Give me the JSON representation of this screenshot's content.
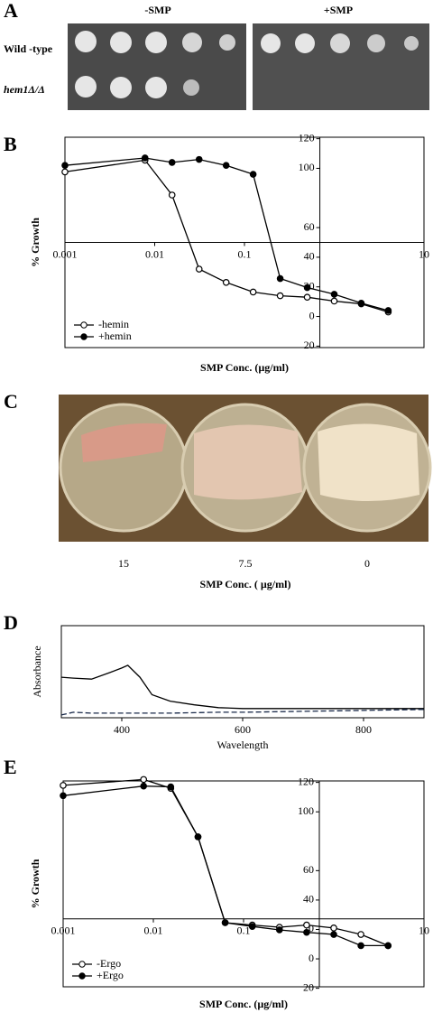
{
  "panel_labels": [
    "A",
    "B",
    "C",
    "D",
    "E"
  ],
  "spot_assay": {
    "conditions": [
      "-SMP",
      "+SMP"
    ],
    "strains": [
      "Wild -type",
      "hem1Δ/Δ"
    ]
  },
  "plate_assay": {
    "categories": [
      "15",
      "7.5",
      "0"
    ],
    "xlabel": "SMP Conc. ( µg/ml)"
  },
  "chart_data": [
    {
      "type": "line",
      "log_x": true,
      "xlabel": "SMP Conc. (µg/ml)",
      "ylabel": "% Growth",
      "x": [
        0.001,
        0.0078,
        0.0156,
        0.03125,
        0.0625,
        0.125,
        0.25,
        0.5,
        1,
        2,
        4
      ],
      "xlim": [
        0.001,
        10
      ],
      "xticks": [
        0.001,
        0.01,
        0.1,
        10
      ],
      "ylim": [
        -21,
        121
      ],
      "yticks": [
        {
          "value": -20,
          "label": "20"
        },
        0,
        20,
        40,
        60,
        100,
        120
      ],
      "legend": "lower left",
      "series": [
        {
          "name": "-hemin",
          "color": "#000000",
          "marker": "open",
          "values": [
            97.6,
            105.5,
            82,
            32,
            23,
            16.5,
            14,
            13,
            10.4,
            8.5,
            3
          ]
        },
        {
          "name": "+hemin",
          "color": "#000000",
          "marker": "filled",
          "values": [
            102,
            107,
            104,
            106,
            102,
            96,
            25.6,
            19.5,
            15,
            9,
            4
          ]
        }
      ]
    },
    {
      "type": "line",
      "xlabel": "Wavelength",
      "ylabel": "Absorbance",
      "x": [
        300,
        320,
        350,
        380,
        400,
        410,
        430,
        450,
        480,
        520,
        560,
        600,
        650,
        900
      ],
      "xlim": [
        300,
        900
      ],
      "xticks": [
        400,
        600,
        800
      ],
      "ylim": [
        0,
        1
      ],
      "series": [
        {
          "color": "#000000",
          "values": [
            0.44,
            0.43,
            0.42,
            0.49,
            0.54,
            0.57,
            0.44,
            0.25,
            0.18,
            0.14,
            0.11,
            0.1,
            0.1,
            0.1
          ]
        },
        {
          "color": "#1a2a4a",
          "dash": true,
          "values": [
            0.03,
            0.06,
            0.05,
            0.05,
            0.05,
            0.05,
            0.05,
            0.05,
            0.05,
            0.055,
            0.06,
            0.06,
            0.065,
            0.09
          ]
        }
      ]
    },
    {
      "type": "line",
      "log_x": true,
      "xlabel": "SMP Conc. (µg/ml)",
      "ylabel": "% Growth",
      "x": [
        0.001,
        0.0078,
        0.0156,
        0.03125,
        0.0625,
        0.125,
        0.25,
        0.5,
        1,
        2,
        4
      ],
      "xlim": [
        0.001,
        10
      ],
      "xticks": [
        0.001,
        0.01,
        0.1,
        10
      ],
      "ylim": [
        -19,
        121
      ],
      "yticks": [
        {
          "value": -20,
          "label": "20"
        },
        0,
        20,
        40,
        60,
        100,
        120
      ],
      "legend": "lower left",
      "series": [
        {
          "name": "-Ergo",
          "color": "#000000",
          "marker": "open",
          "values": [
            118,
            122,
            116,
            83,
            24.6,
            23,
            21.5,
            23,
            21,
            16.6,
            9
          ]
        },
        {
          "name": "+Ergo",
          "color": "#000000",
          "marker": "filled",
          "values": [
            111,
            117.5,
            117,
            83,
            24.6,
            22,
            19.7,
            18,
            16.6,
            9,
            9
          ]
        }
      ]
    }
  ]
}
